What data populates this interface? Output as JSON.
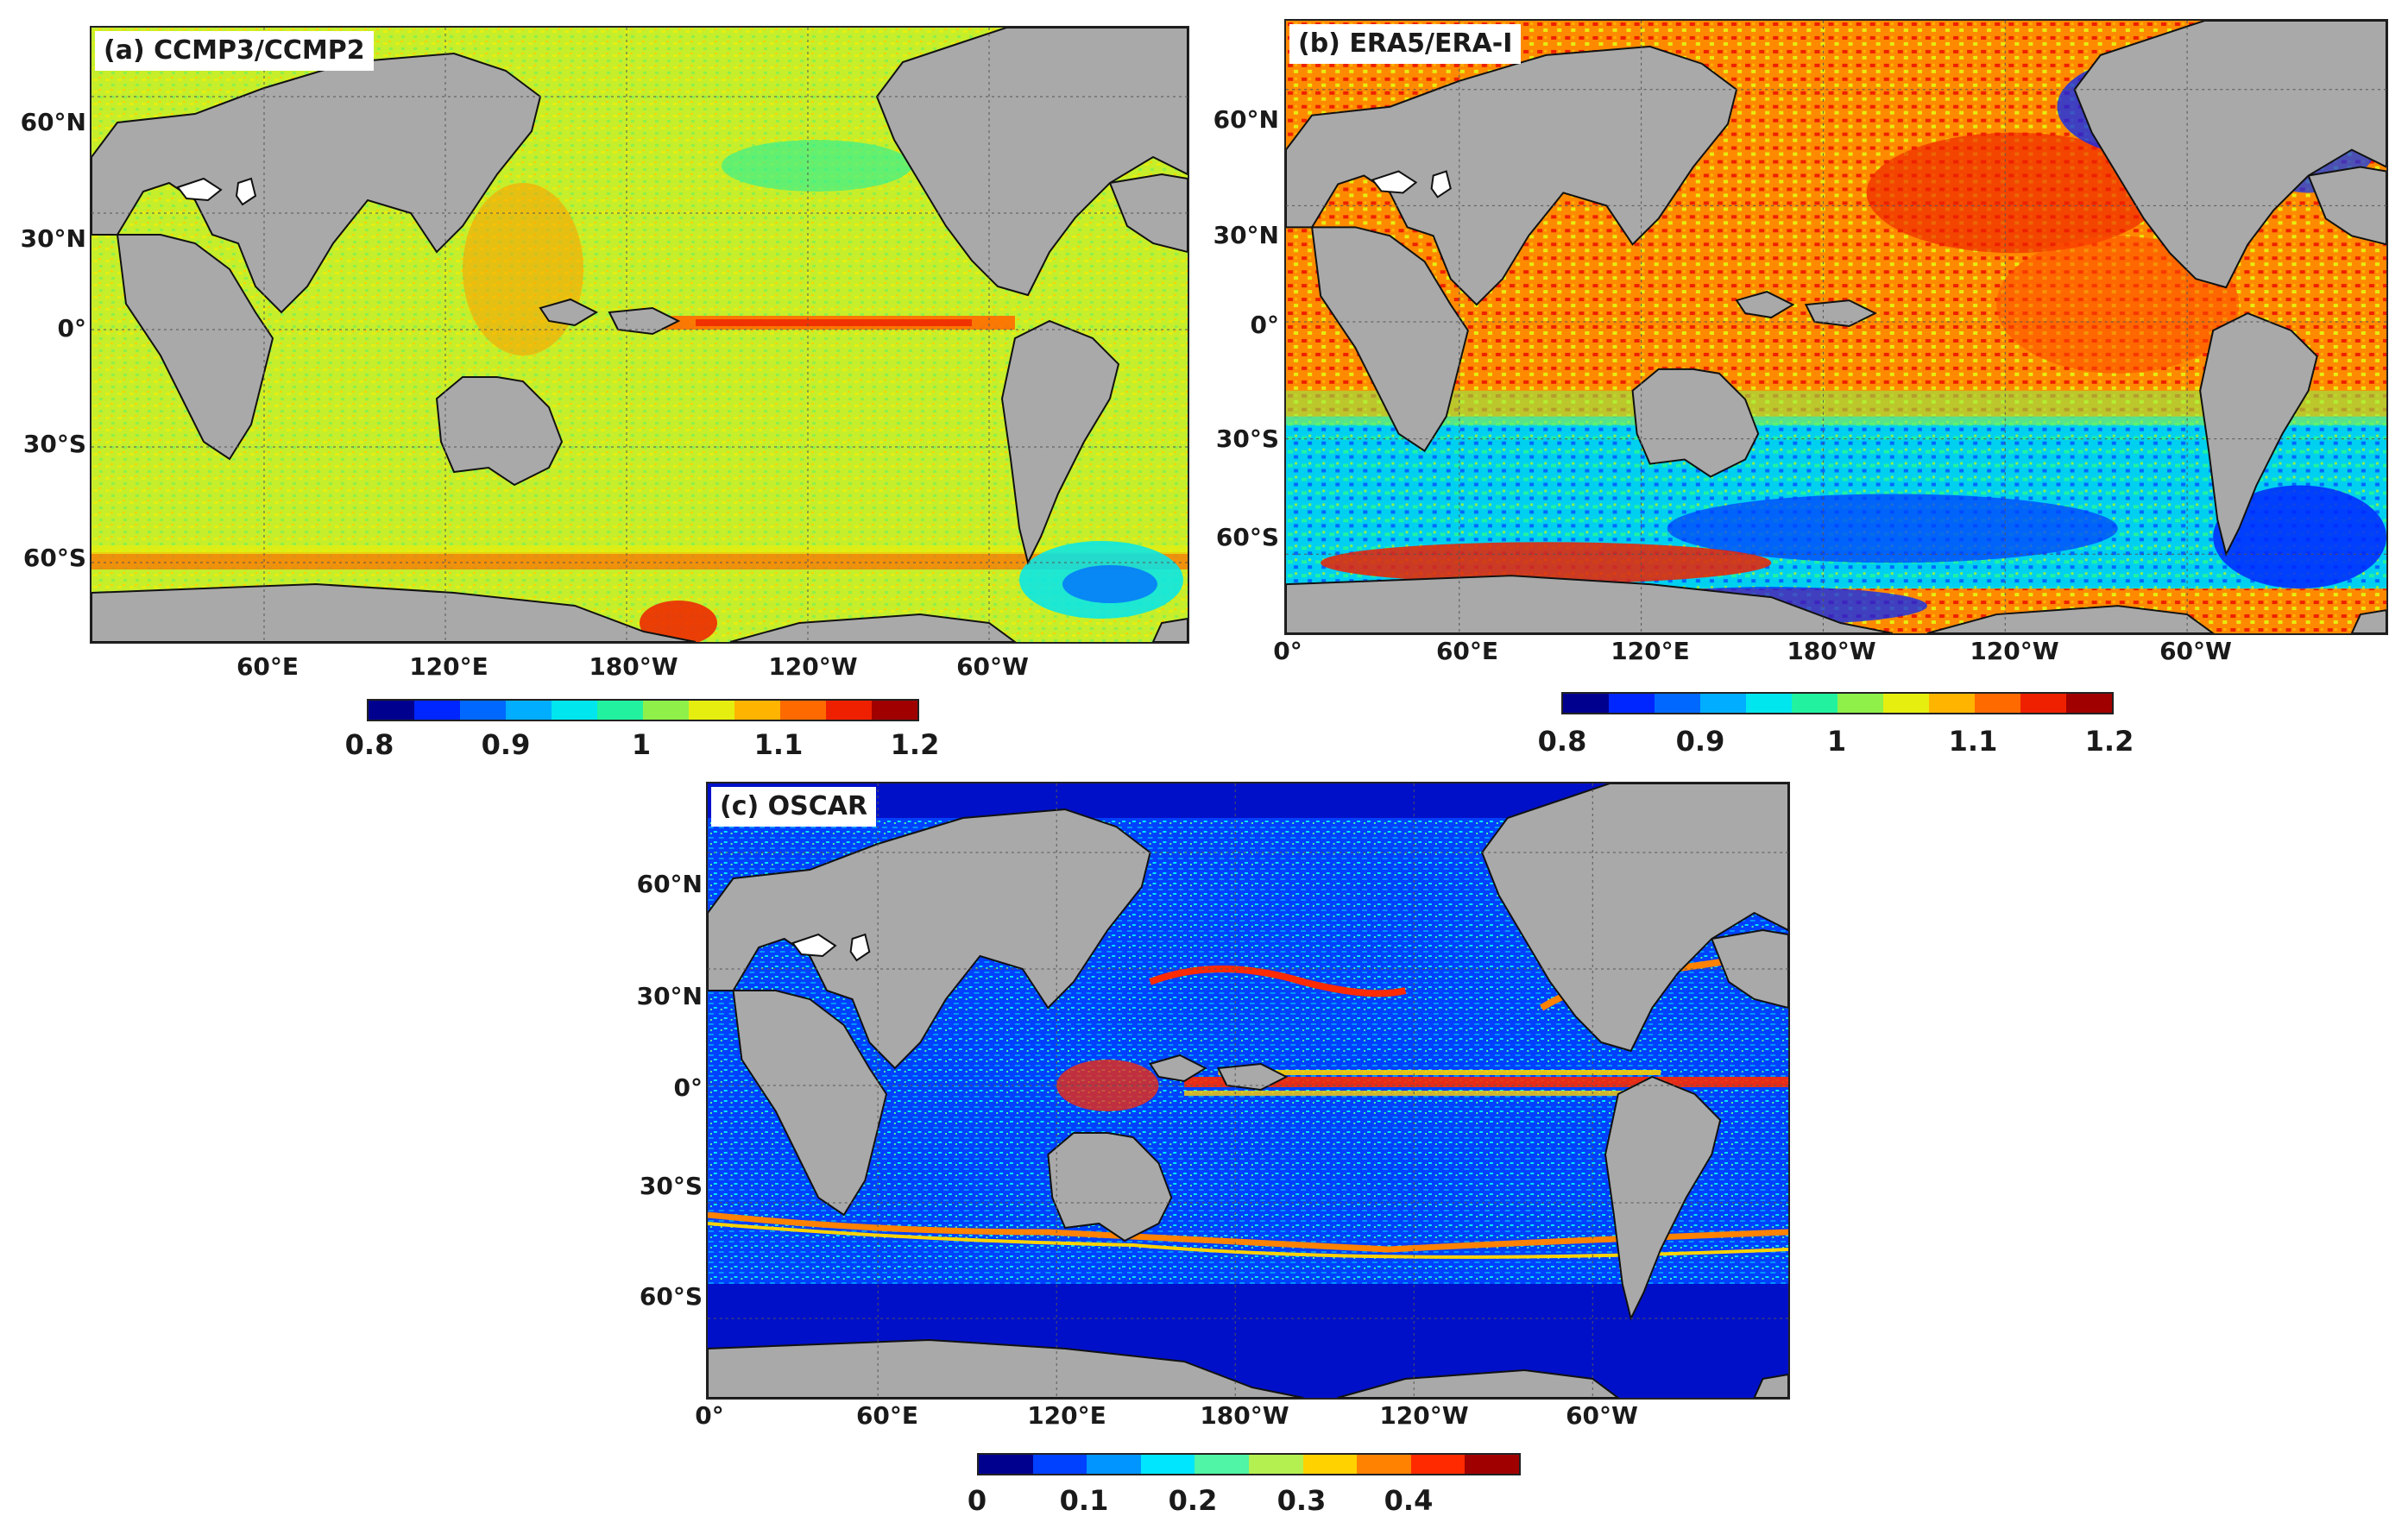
{
  "panels": {
    "a": {
      "label": "(a) CCMP3/CCMP2",
      "lat_labels": [
        "60°N",
        "30°N",
        "0°",
        "30°S",
        "60°S"
      ],
      "lon_labels": [
        "60°E",
        "120°E",
        "180°W",
        "120°W",
        "60°W"
      ],
      "colorbar": {
        "ticks": [
          "0.8",
          "0.9",
          "1",
          "1.1",
          "1.2"
        ],
        "min": 0.8,
        "max": 1.2
      },
      "dominant_value": 1.02
    },
    "b": {
      "label": "(b) ERA5/ERA-I",
      "lat_labels": [
        "60°N",
        "30°N",
        "0°",
        "30°S",
        "60°S"
      ],
      "lon_labels": [
        "0°",
        "60°E",
        "120°E",
        "180°W",
        "120°W",
        "60°W"
      ],
      "colorbar": {
        "ticks": [
          "0.8",
          "0.9",
          "1",
          "1.1",
          "1.2"
        ],
        "min": 0.8,
        "max": 1.2
      },
      "dominant_value": 1.12
    },
    "c": {
      "label": "(c) OSCAR",
      "lat_labels": [
        "60°N",
        "30°N",
        "0°",
        "30°S",
        "60°S"
      ],
      "lon_labels": [
        "0°",
        "60°E",
        "120°E",
        "180°W",
        "120°W",
        "60°W"
      ],
      "colorbar": {
        "ticks": [
          "0",
          "0.1",
          "0.2",
          "0.3",
          "0.4"
        ],
        "min": 0,
        "max": 0.5
      },
      "dominant_value": 0.06
    }
  },
  "colors": {
    "land": "#a9a9a9",
    "colormap_ab": [
      "#00008f",
      "#0026ff",
      "#0068ff",
      "#00adff",
      "#00e6ee",
      "#22f2a0",
      "#8ff04a",
      "#e6ee10",
      "#ffb400",
      "#ff6a00",
      "#ee2000",
      "#a00000"
    ],
    "colormap_c": [
      "#00008f",
      "#0040ff",
      "#0095ff",
      "#00e6ff",
      "#50f5a5",
      "#b4f050",
      "#ffd200",
      "#ff8200",
      "#ff2a00",
      "#a00000"
    ]
  }
}
